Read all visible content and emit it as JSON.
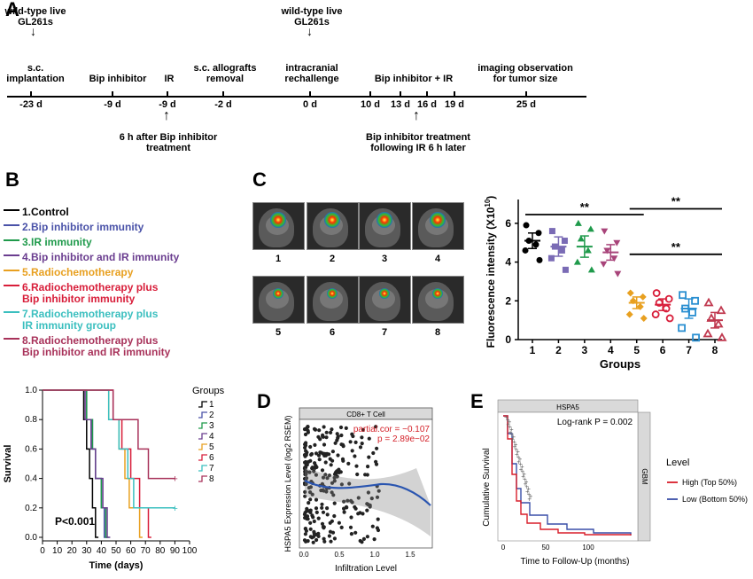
{
  "panel_a": {
    "letter": "A",
    "top_labels": [
      {
        "id": "wt1",
        "text": "wild-type live\nGL261s"
      },
      {
        "id": "wt2",
        "text": "wild-type live\nGL261s"
      }
    ],
    "events": [
      {
        "id": "sc",
        "text": "s.c.\nimplantation"
      },
      {
        "id": "bip",
        "text": "Bip inhibitor"
      },
      {
        "id": "ir",
        "text": "IR"
      },
      {
        "id": "removal",
        "text": "s.c. allografts\nremoval"
      },
      {
        "id": "rechallenge",
        "text": "intracranial\nrechallenge"
      },
      {
        "id": "bipir",
        "text": "Bip inhibitor + IR"
      },
      {
        "id": "imaging",
        "text": "imaging observation\nfor tumor size"
      }
    ],
    "days": [
      "-23 d",
      "-9 d",
      "-9 d",
      "-2 d",
      "0 d",
      "10 d",
      "13 d",
      "16 d",
      "19 d",
      "25 d"
    ],
    "bottom_notes": [
      {
        "id": "note1",
        "text": "6 h after Bip inhibitor\ntreatment"
      },
      {
        "id": "note2",
        "text": "Bip inhibitor treatment\nfollowing IR 6 h later"
      }
    ]
  },
  "panel_b": {
    "letter": "B",
    "legend": [
      {
        "label": "1.Control",
        "color": "#000000"
      },
      {
        "label": "2.Bip inhibitor immunity",
        "color": "#4a52a8"
      },
      {
        "label": "3.IR immunity",
        "color": "#1f9a4b"
      },
      {
        "label": "4.Bip inhibitor and IR immunity",
        "color": "#6a3d8f"
      },
      {
        "label": "5.Radiochemotherapy",
        "color": "#e8a020"
      },
      {
        "label": "6.Radiochemotherapy plus\nBip inhibitor immunity",
        "color": "#d81e3a"
      },
      {
        "label": "7.Radiochemotherapy plus\nIR immunity group",
        "color": "#3bbfbf"
      },
      {
        "label": "8.Radiochemotherapy plus\nBip inhibitor and IR immunity",
        "color": "#a8325a"
      }
    ]
  },
  "panel_c": {
    "letter": "C",
    "image_labels": [
      "1",
      "2",
      "3",
      "4",
      "5",
      "6",
      "7",
      "8"
    ]
  },
  "panel_d": {
    "letter": "D"
  },
  "panel_e": {
    "letter": "E"
  },
  "chart_data": [
    {
      "id": "survival",
      "type": "line",
      "title": "",
      "xlabel": "Time (days)",
      "ylabel": "Survival",
      "xlim": [
        0,
        100
      ],
      "ylim": [
        0,
        1.0
      ],
      "xticks": [
        0,
        10,
        20,
        30,
        40,
        50,
        60,
        70,
        80,
        90,
        100
      ],
      "yticks": [
        "0.0",
        "0.2",
        "0.4",
        "0.6",
        "0.8",
        "1.0"
      ],
      "annotation": "P<0.001",
      "legend_title": "Groups",
      "series": [
        {
          "name": "1",
          "color": "#000000",
          "steps": [
            [
              0,
              1.0
            ],
            [
              28,
              1.0
            ],
            [
              28,
              0.8
            ],
            [
              30,
              0.8
            ],
            [
              30,
              0.6
            ],
            [
              32,
              0.6
            ],
            [
              32,
              0.4
            ],
            [
              34,
              0.4
            ],
            [
              34,
              0.2
            ],
            [
              36,
              0.2
            ],
            [
              36,
              0.0
            ],
            [
              38,
              0.0
            ]
          ]
        },
        {
          "name": "2",
          "color": "#4a52a8",
          "steps": [
            [
              0,
              1.0
            ],
            [
              30,
              1.0
            ],
            [
              30,
              0.8
            ],
            [
              34,
              0.8
            ],
            [
              34,
              0.6
            ],
            [
              36,
              0.6
            ],
            [
              36,
              0.4
            ],
            [
              40,
              0.4
            ],
            [
              40,
              0.2
            ],
            [
              42,
              0.2
            ],
            [
              42,
              0.0
            ],
            [
              44,
              0.0
            ]
          ]
        },
        {
          "name": "3",
          "color": "#1f9a4b",
          "steps": [
            [
              0,
              1.0
            ],
            [
              30,
              1.0
            ],
            [
              30,
              0.8
            ],
            [
              34,
              0.8
            ],
            [
              34,
              0.6
            ],
            [
              36,
              0.6
            ],
            [
              36,
              0.4
            ],
            [
              40,
              0.4
            ],
            [
              40,
              0.2
            ],
            [
              43,
              0.2
            ],
            [
              43,
              0.0
            ],
            [
              45,
              0.0
            ]
          ]
        },
        {
          "name": "4",
          "color": "#6a3d8f",
          "steps": [
            [
              0,
              1.0
            ],
            [
              29,
              1.0
            ],
            [
              29,
              0.8
            ],
            [
              33,
              0.8
            ],
            [
              33,
              0.6
            ],
            [
              36,
              0.6
            ],
            [
              36,
              0.4
            ],
            [
              41,
              0.4
            ],
            [
              41,
              0.2
            ],
            [
              44,
              0.2
            ],
            [
              44,
              0.0
            ],
            [
              46,
              0.0
            ]
          ]
        },
        {
          "name": "5",
          "color": "#e8a020",
          "steps": [
            [
              0,
              1.0
            ],
            [
              45,
              1.0
            ],
            [
              45,
              0.8
            ],
            [
              52,
              0.8
            ],
            [
              52,
              0.6
            ],
            [
              56,
              0.6
            ],
            [
              56,
              0.4
            ],
            [
              59,
              0.4
            ],
            [
              59,
              0.2
            ],
            [
              66,
              0.2
            ],
            [
              66,
              0.0
            ],
            [
              68,
              0.0
            ]
          ]
        },
        {
          "name": "6",
          "color": "#d81e3a",
          "steps": [
            [
              0,
              1.0
            ],
            [
              48,
              1.0
            ],
            [
              48,
              0.8
            ],
            [
              54,
              0.8
            ],
            [
              54,
              0.6
            ],
            [
              60,
              0.6
            ],
            [
              60,
              0.4
            ],
            [
              66,
              0.4
            ],
            [
              66,
              0.2
            ],
            [
              72,
              0.2
            ],
            [
              72,
              0.0
            ],
            [
              74,
              0.0
            ]
          ]
        },
        {
          "name": "7",
          "color": "#3bbfbf",
          "steps": [
            [
              0,
              1.0
            ],
            [
              45,
              1.0
            ],
            [
              45,
              0.8
            ],
            [
              52,
              0.8
            ],
            [
              52,
              0.6
            ],
            [
              58,
              0.6
            ],
            [
              58,
              0.4
            ],
            [
              62,
              0.4
            ],
            [
              62,
              0.2
            ],
            [
              90,
              0.2
            ]
          ]
        },
        {
          "name": "8",
          "color": "#a8325a",
          "steps": [
            [
              0,
              1.0
            ],
            [
              48,
              1.0
            ],
            [
              48,
              0.8
            ],
            [
              65,
              0.8
            ],
            [
              65,
              0.6
            ],
            [
              72,
              0.6
            ],
            [
              72,
              0.4
            ],
            [
              90,
              0.4
            ]
          ]
        }
      ]
    },
    {
      "id": "fluorescence",
      "type": "scatter",
      "xlabel": "Groups",
      "ylabel": "Fluorescence intensity (X10",
      "ylabel_exp": "10",
      "ylabel_close": ")",
      "ylim": [
        0,
        7
      ],
      "yticks": [
        "0",
        "2",
        "4",
        "6"
      ],
      "categories": [
        "1",
        "2",
        "3",
        "4",
        "5",
        "6",
        "7",
        "8"
      ],
      "significance": [
        "**",
        "**",
        "**"
      ],
      "series": [
        {
          "name": "1",
          "color": "#000000",
          "marker": "circle",
          "mean": 5.1,
          "sem": 0.4,
          "values": [
            5.9,
            5.5,
            5.1,
            4.9,
            4.6,
            4.1
          ]
        },
        {
          "name": "2",
          "color": "#7a6bb5",
          "marker": "square",
          "mean": 4.8,
          "sem": 0.5,
          "values": [
            5.6,
            5.1,
            4.8,
            4.6,
            4.2,
            3.6
          ]
        },
        {
          "name": "3",
          "color": "#1f9a4b",
          "marker": "triangle",
          "mean": 4.8,
          "sem": 0.55,
          "values": [
            6.0,
            5.7,
            5.2,
            4.6,
            4.0,
            3.6
          ]
        },
        {
          "name": "4",
          "color": "#a8447a",
          "marker": "triangle-down",
          "mean": 4.5,
          "sem": 0.4,
          "values": [
            5.6,
            5.0,
            4.6,
            4.2,
            3.9,
            3.4
          ]
        },
        {
          "name": "5",
          "color": "#e8a020",
          "marker": "diamond",
          "mean": 1.9,
          "sem": 0.3,
          "values": [
            2.4,
            2.2,
            2.0,
            1.7,
            1.3,
            1.1
          ]
        },
        {
          "name": "6",
          "color": "#d81e3a",
          "marker": "circle-open",
          "mean": 1.8,
          "sem": 0.3,
          "values": [
            2.4,
            2.1,
            1.9,
            1.6,
            1.3,
            1.1
          ]
        },
        {
          "name": "7",
          "color": "#2a8fd1",
          "marker": "square-open",
          "mean": 1.6,
          "sem": 0.5,
          "values": [
            2.3,
            2.0,
            1.6,
            1.4,
            0.6,
            0.1
          ]
        },
        {
          "name": "8",
          "color": "#c0394f",
          "marker": "triangle-open",
          "mean": 1.0,
          "sem": 0.4,
          "values": [
            1.9,
            1.5,
            1.1,
            0.8,
            0.3,
            0.1
          ]
        }
      ]
    },
    {
      "id": "hspa5_cd8",
      "type": "scatter",
      "facet": "CD8+ T Cell",
      "xlabel": "Infiltration Level",
      "ylabel": "HSPA5 Expression Level (log2 RSEM)",
      "xticks": [
        "0.0",
        "0.5",
        "1.0",
        "1.5"
      ],
      "annotations": [
        "partial.cor = −0.107",
        "p = 2.89e−02"
      ]
    },
    {
      "id": "km_hspa5",
      "type": "line",
      "facet_top": "HSPA5",
      "facet_right": "GBM",
      "annotation": "Log-rank P = 0.002",
      "xlabel": "Time to Follow-Up (months)",
      "ylabel": "Cumulative Survival",
      "xticks": [
        "0",
        "50",
        "100"
      ],
      "legend_title": "Level",
      "series": [
        {
          "name": "High (Top 50%)",
          "color": "#d81e2a"
        },
        {
          "name": "Low (Bottom 50%)",
          "color": "#3a4fa8"
        }
      ]
    }
  ]
}
